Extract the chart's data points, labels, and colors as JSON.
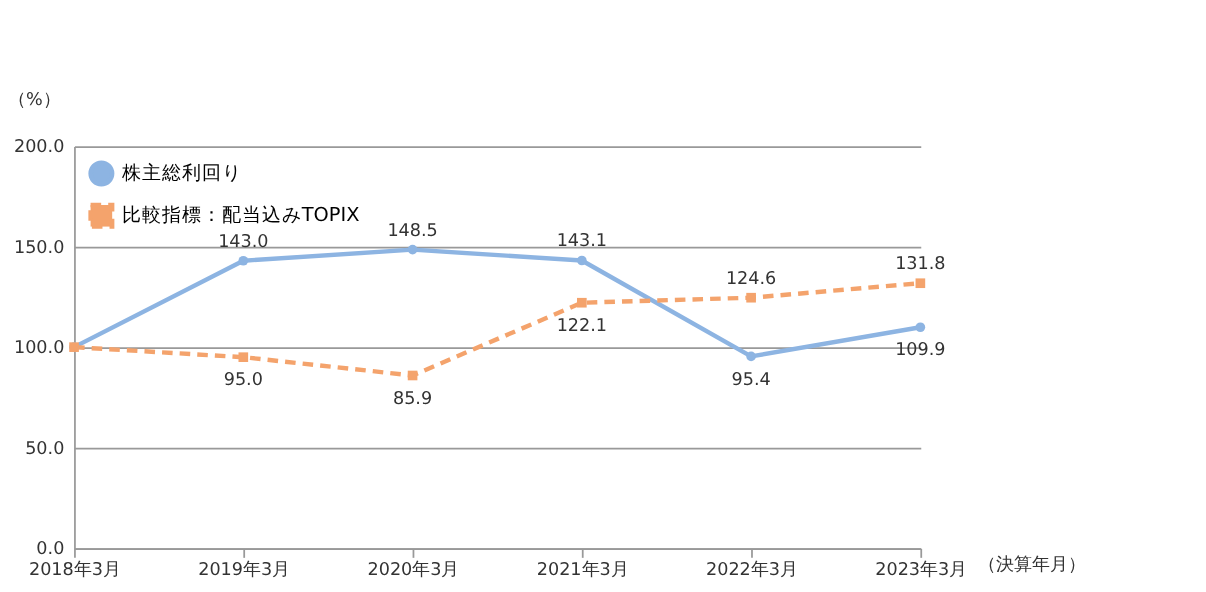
{
  "chart_data": {
    "type": "line",
    "ylabel": "（%）",
    "xlabel": "（決算年月）",
    "categories": [
      "2018年3月",
      "2019年3月",
      "2020年3月",
      "2021年3月",
      "2022年3月",
      "2023年3月"
    ],
    "series": [
      {
        "name": "株主総利回り",
        "color": "#8db4e2",
        "marker": "circle",
        "line_style": "solid",
        "values": [
          100.0,
          143.0,
          148.5,
          143.1,
          95.4,
          109.9
        ],
        "value_labels": [
          null,
          "143.0",
          "148.5",
          "143.1",
          "95.4",
          "109.9"
        ]
      },
      {
        "name": "比較指標：配当込みTOPIX",
        "color": "#f4a36c",
        "marker": "square",
        "line_style": "dashed",
        "values": [
          100.0,
          95.0,
          85.9,
          122.1,
          124.6,
          131.8
        ],
        "value_labels": [
          null,
          "95.0",
          "85.9",
          "122.1",
          "124.6",
          "131.8"
        ]
      }
    ],
    "ylim": [
      0,
      200
    ],
    "yticks": [
      {
        "value": 0,
        "label": "0.0"
      },
      {
        "value": 50,
        "label": "50.0"
      },
      {
        "value": 100,
        "label": "100.0"
      },
      {
        "value": 150,
        "label": "150.0"
      },
      {
        "value": 200,
        "label": "200.0"
      }
    ],
    "grid": "y",
    "legend": "top left"
  }
}
